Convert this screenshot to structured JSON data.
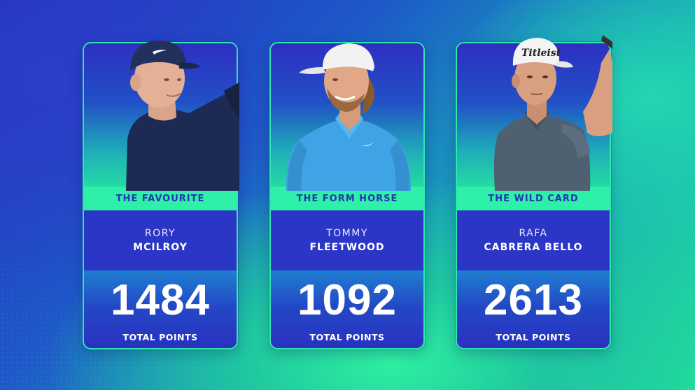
{
  "cards": [
    {
      "tag": "THE FAVOURITE",
      "first_name": "RORY",
      "last_name": "MCILROY",
      "points": "1484",
      "points_label": "TOTAL POINTS",
      "colors": {
        "shirt": "#1d2a54",
        "cap": "#22305e"
      }
    },
    {
      "tag": "THE FORM HORSE",
      "first_name": "TOMMY",
      "last_name": "FLEETWOOD",
      "points": "1092",
      "points_label": "TOTAL POINTS",
      "colors": {
        "shirt": "#3fa4e6",
        "cap": "#f2f2f2"
      }
    },
    {
      "tag": "THE WILD CARD",
      "first_name": "RAFA",
      "last_name": "CABRERA BELLO",
      "points": "2613",
      "points_label": "TOTAL POINTS",
      "colors": {
        "shirt": "#4f6070",
        "cap": "#f4f4f4"
      }
    }
  ],
  "cap_logo_text": "Titleist",
  "accent_color": "#2ff0a8"
}
